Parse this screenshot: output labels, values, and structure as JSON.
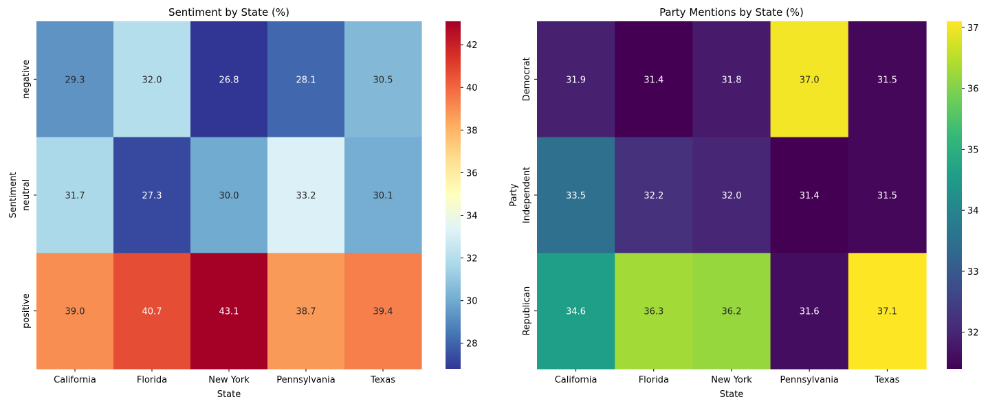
{
  "chart_data": [
    {
      "type": "heatmap",
      "title": "Sentiment by State (%)",
      "xlabel": "State",
      "ylabel": "Sentiment",
      "x_categories": [
        "California",
        "Florida",
        "New York",
        "Pennsylvania",
        "Texas"
      ],
      "y_categories": [
        "negative",
        "neutral",
        "positive"
      ],
      "values": [
        [
          29.3,
          32.0,
          26.8,
          28.1,
          30.5
        ],
        [
          31.7,
          27.3,
          30.0,
          33.2,
          30.1
        ],
        [
          39.0,
          40.7,
          43.1,
          38.7,
          39.4
        ]
      ],
      "value_format": "0.1f",
      "colormap": "RdYlBu_r",
      "colorbar_range": [
        26.8,
        43.1
      ],
      "colorbar_ticks": [
        "28",
        "30",
        "32",
        "34",
        "36",
        "38",
        "40",
        "42"
      ],
      "grid": false
    },
    {
      "type": "heatmap",
      "title": "Party Mentions by State (%)",
      "xlabel": "State",
      "ylabel": "Party",
      "x_categories": [
        "California",
        "Florida",
        "New York",
        "Pennsylvania",
        "Texas"
      ],
      "y_categories": [
        "Democrat",
        "Independent",
        "Republican"
      ],
      "values": [
        [
          31.9,
          31.4,
          31.8,
          37.0,
          31.5
        ],
        [
          33.5,
          32.2,
          32.0,
          31.4,
          31.5
        ],
        [
          34.6,
          36.3,
          36.2,
          31.6,
          37.1
        ]
      ],
      "value_format": "0.1f",
      "colormap": "viridis",
      "colorbar_range": [
        31.4,
        37.1
      ],
      "colorbar_ticks": [
        "32",
        "33",
        "34",
        "35",
        "36",
        "37"
      ],
      "grid": false
    }
  ]
}
